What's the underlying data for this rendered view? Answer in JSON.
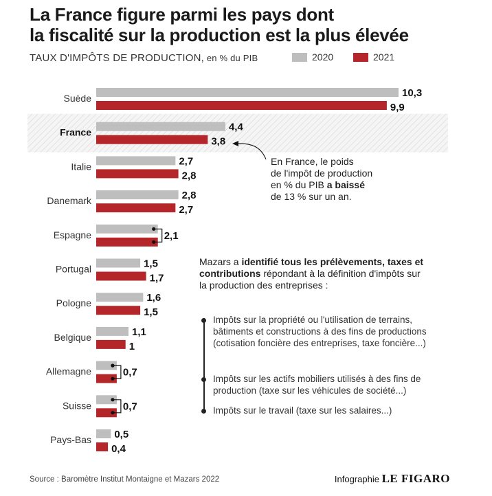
{
  "header": {
    "title_line1": "La France figure parmi les pays dont",
    "title_line2": "la fiscalité sur la production est la plus élevée",
    "subtitle": "TAUX D'IMPÔTS DE PRODUCTION,",
    "subtitle_unit": " en % du PIB"
  },
  "colors": {
    "s2020": "#bebebe",
    "s2021": "#b5262b",
    "highlight": "#f3f3f3"
  },
  "chart_data": {
    "type": "bar",
    "orientation": "horizontal",
    "categories": [
      "Suède",
      "France",
      "Italie",
      "Danemark",
      "Espagne",
      "Portugal",
      "Pologne",
      "Belgique",
      "Allemagne",
      "Suisse",
      "Pays-Bas"
    ],
    "highlight_category": "France",
    "series": [
      {
        "name": "2020",
        "values": [
          10.3,
          4.4,
          2.7,
          2.8,
          2.1,
          1.5,
          1.6,
          1.1,
          0.7,
          0.7,
          0.5
        ]
      },
      {
        "name": "2021",
        "values": [
          9.9,
          3.8,
          2.8,
          2.7,
          2.1,
          1.7,
          1.5,
          1.0,
          0.7,
          0.7,
          0.4
        ]
      }
    ],
    "value_labels": [
      [
        "10,3",
        "9,9"
      ],
      [
        "4,4",
        "3,8"
      ],
      [
        "2,7",
        "2,8"
      ],
      [
        "2,8",
        "2,7"
      ],
      [
        "2,1"
      ],
      [
        "1,5",
        "1,7"
      ],
      [
        "1,6",
        "1,5"
      ],
      [
        "1,1",
        "1"
      ],
      [
        "0,7"
      ],
      [
        "0,7"
      ],
      [
        "0,5",
        "0,4"
      ]
    ],
    "xlim": [
      0,
      10.3
    ],
    "legend_placement": "top"
  },
  "annotation_france": {
    "line1": "En France, le poids",
    "line2": "de l'impôt de production",
    "line3a": "en % du PIB ",
    "line3b": "a baissé",
    "line4": "de 13 % sur un an."
  },
  "annotation_mazars": {
    "p1a": "Mazars a ",
    "p1b": "identifié tous les prélèvements, taxes et contributions",
    "p1c": " répondant à la définition d'impôts sur la production des entreprises :"
  },
  "list_items": [
    "Impôts sur la propriété ou l'utilisation de terrains, bâtiments et constructions à des fins de productions (cotisation foncière des entreprises, taxe foncière...)",
    "Impôts sur les actifs mobiliers utilisés à des fins de production (taxe sur les véhicules de société...)",
    "Impôts sur le travail (taxe sur les salaires...)"
  ],
  "footer": {
    "source": "Source : Baromètre Institut Montaigne et Mazars 2022",
    "credit_prefix": "Infographie ",
    "credit_brand": "LE FIGARO"
  }
}
